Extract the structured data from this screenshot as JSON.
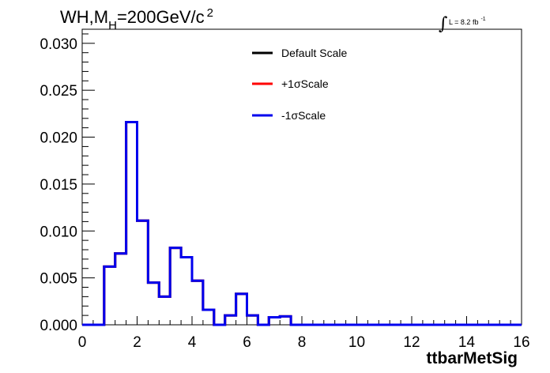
{
  "chart_data": {
    "type": "step-histogram",
    "title": {
      "prefix": "WH,M",
      "subscript": "H",
      "suffix": "=200GeV/c",
      "superscript": "2"
    },
    "luminosity": {
      "integral_symbol": "∫",
      "text": "L = 8.2 fb",
      "superscript": "-1"
    },
    "xlabel": "ttbarMetSig",
    "ylabel": "",
    "xlim": [
      0,
      16
    ],
    "ylim": [
      0,
      0.0315
    ],
    "x_ticks": [
      "0",
      "2",
      "4",
      "6",
      "8",
      "10",
      "12",
      "14",
      "16"
    ],
    "y_ticks": [
      "0.000",
      "0.005",
      "0.010",
      "0.015",
      "0.020",
      "0.025",
      "0.030"
    ],
    "bin_width": 0.4,
    "bin_edges_start": 0,
    "series": [
      {
        "name": "Default Scale",
        "color": "#000000",
        "values": [
          0,
          0,
          0.0062,
          0.0076,
          0.0216,
          0.0111,
          0.0045,
          0.003,
          0.0082,
          0.0072,
          0.0047,
          0.0016,
          0,
          0.001,
          0.0033,
          0.001,
          0,
          0.0008,
          0.0009,
          0,
          0,
          0,
          0,
          0,
          0,
          0,
          0,
          0,
          0,
          0,
          0,
          0,
          0,
          0,
          0,
          0,
          0,
          0,
          0,
          0
        ]
      },
      {
        "name": "+1σScale",
        "color": "#ff0000",
        "values": [
          0,
          0,
          0.0062,
          0.0076,
          0.0216,
          0.0111,
          0.0045,
          0.003,
          0.0082,
          0.0072,
          0.0047,
          0.0016,
          0,
          0.001,
          0.0033,
          0.001,
          0,
          0.0008,
          0.0009,
          0,
          0,
          0,
          0,
          0,
          0,
          0,
          0,
          0,
          0,
          0,
          0,
          0,
          0,
          0,
          0,
          0,
          0,
          0,
          0,
          0
        ]
      },
      {
        "name": "-1σScale",
        "color": "#0000ee",
        "values": [
          0,
          0,
          0.0062,
          0.0076,
          0.0216,
          0.0111,
          0.0045,
          0.003,
          0.0082,
          0.0072,
          0.0047,
          0.0016,
          0,
          0.001,
          0.0033,
          0.001,
          0,
          0.0008,
          0.0009,
          0,
          0,
          0,
          0,
          0,
          0,
          0,
          0,
          0,
          0,
          0,
          0,
          0,
          0,
          0,
          0,
          0,
          0,
          0,
          0,
          0
        ]
      }
    ],
    "legend": {
      "placement": "top-center",
      "entries": [
        "Default Scale",
        "+1σScale",
        "-1σScale"
      ]
    }
  }
}
